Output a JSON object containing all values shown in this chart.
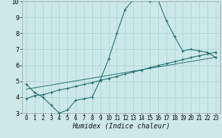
{
  "xlabel": "Humidex (Indice chaleur)",
  "bg_color": "#cce8e8",
  "line_color": "#1a6b6b",
  "grid_color": "#aacfcf",
  "xlim": [
    -0.5,
    23.5
  ],
  "ylim": [
    3,
    10
  ],
  "xticks": [
    0,
    1,
    2,
    3,
    4,
    5,
    6,
    7,
    8,
    9,
    10,
    11,
    12,
    13,
    14,
    15,
    16,
    17,
    18,
    19,
    20,
    21,
    22,
    23
  ],
  "yticks": [
    3,
    4,
    5,
    6,
    7,
    8,
    9,
    10
  ],
  "curve1_x": [
    0,
    1,
    2,
    3,
    4,
    5,
    6,
    7,
    8,
    9,
    10,
    11,
    12,
    13,
    14,
    15,
    16,
    17,
    18,
    19,
    20,
    21,
    22,
    23
  ],
  "curve1_y": [
    4.8,
    4.3,
    4.0,
    3.5,
    3.0,
    3.2,
    3.8,
    3.9,
    4.0,
    5.1,
    6.4,
    8.0,
    9.5,
    10.1,
    10.1,
    10.0,
    10.1,
    8.8,
    7.8,
    6.9,
    7.0,
    6.9,
    6.8,
    6.5
  ],
  "curve2_x": [
    0,
    1,
    2,
    3,
    4,
    5,
    6,
    7,
    8,
    9,
    10,
    11,
    12,
    13,
    14,
    15,
    16,
    17,
    18,
    19,
    20,
    21,
    22,
    23
  ],
  "curve2_y": [
    3.9,
    4.1,
    4.15,
    4.3,
    4.45,
    4.55,
    4.68,
    4.8,
    4.92,
    5.05,
    5.18,
    5.3,
    5.45,
    5.58,
    5.7,
    5.85,
    5.98,
    6.1,
    6.22,
    6.35,
    6.48,
    6.6,
    6.7,
    6.82
  ],
  "curve3_x": [
    0,
    23
  ],
  "curve3_y": [
    4.5,
    6.5
  ],
  "xlabel_fontsize": 7,
  "tick_fontsize_x": 5.5,
  "tick_fontsize_y": 6.5
}
